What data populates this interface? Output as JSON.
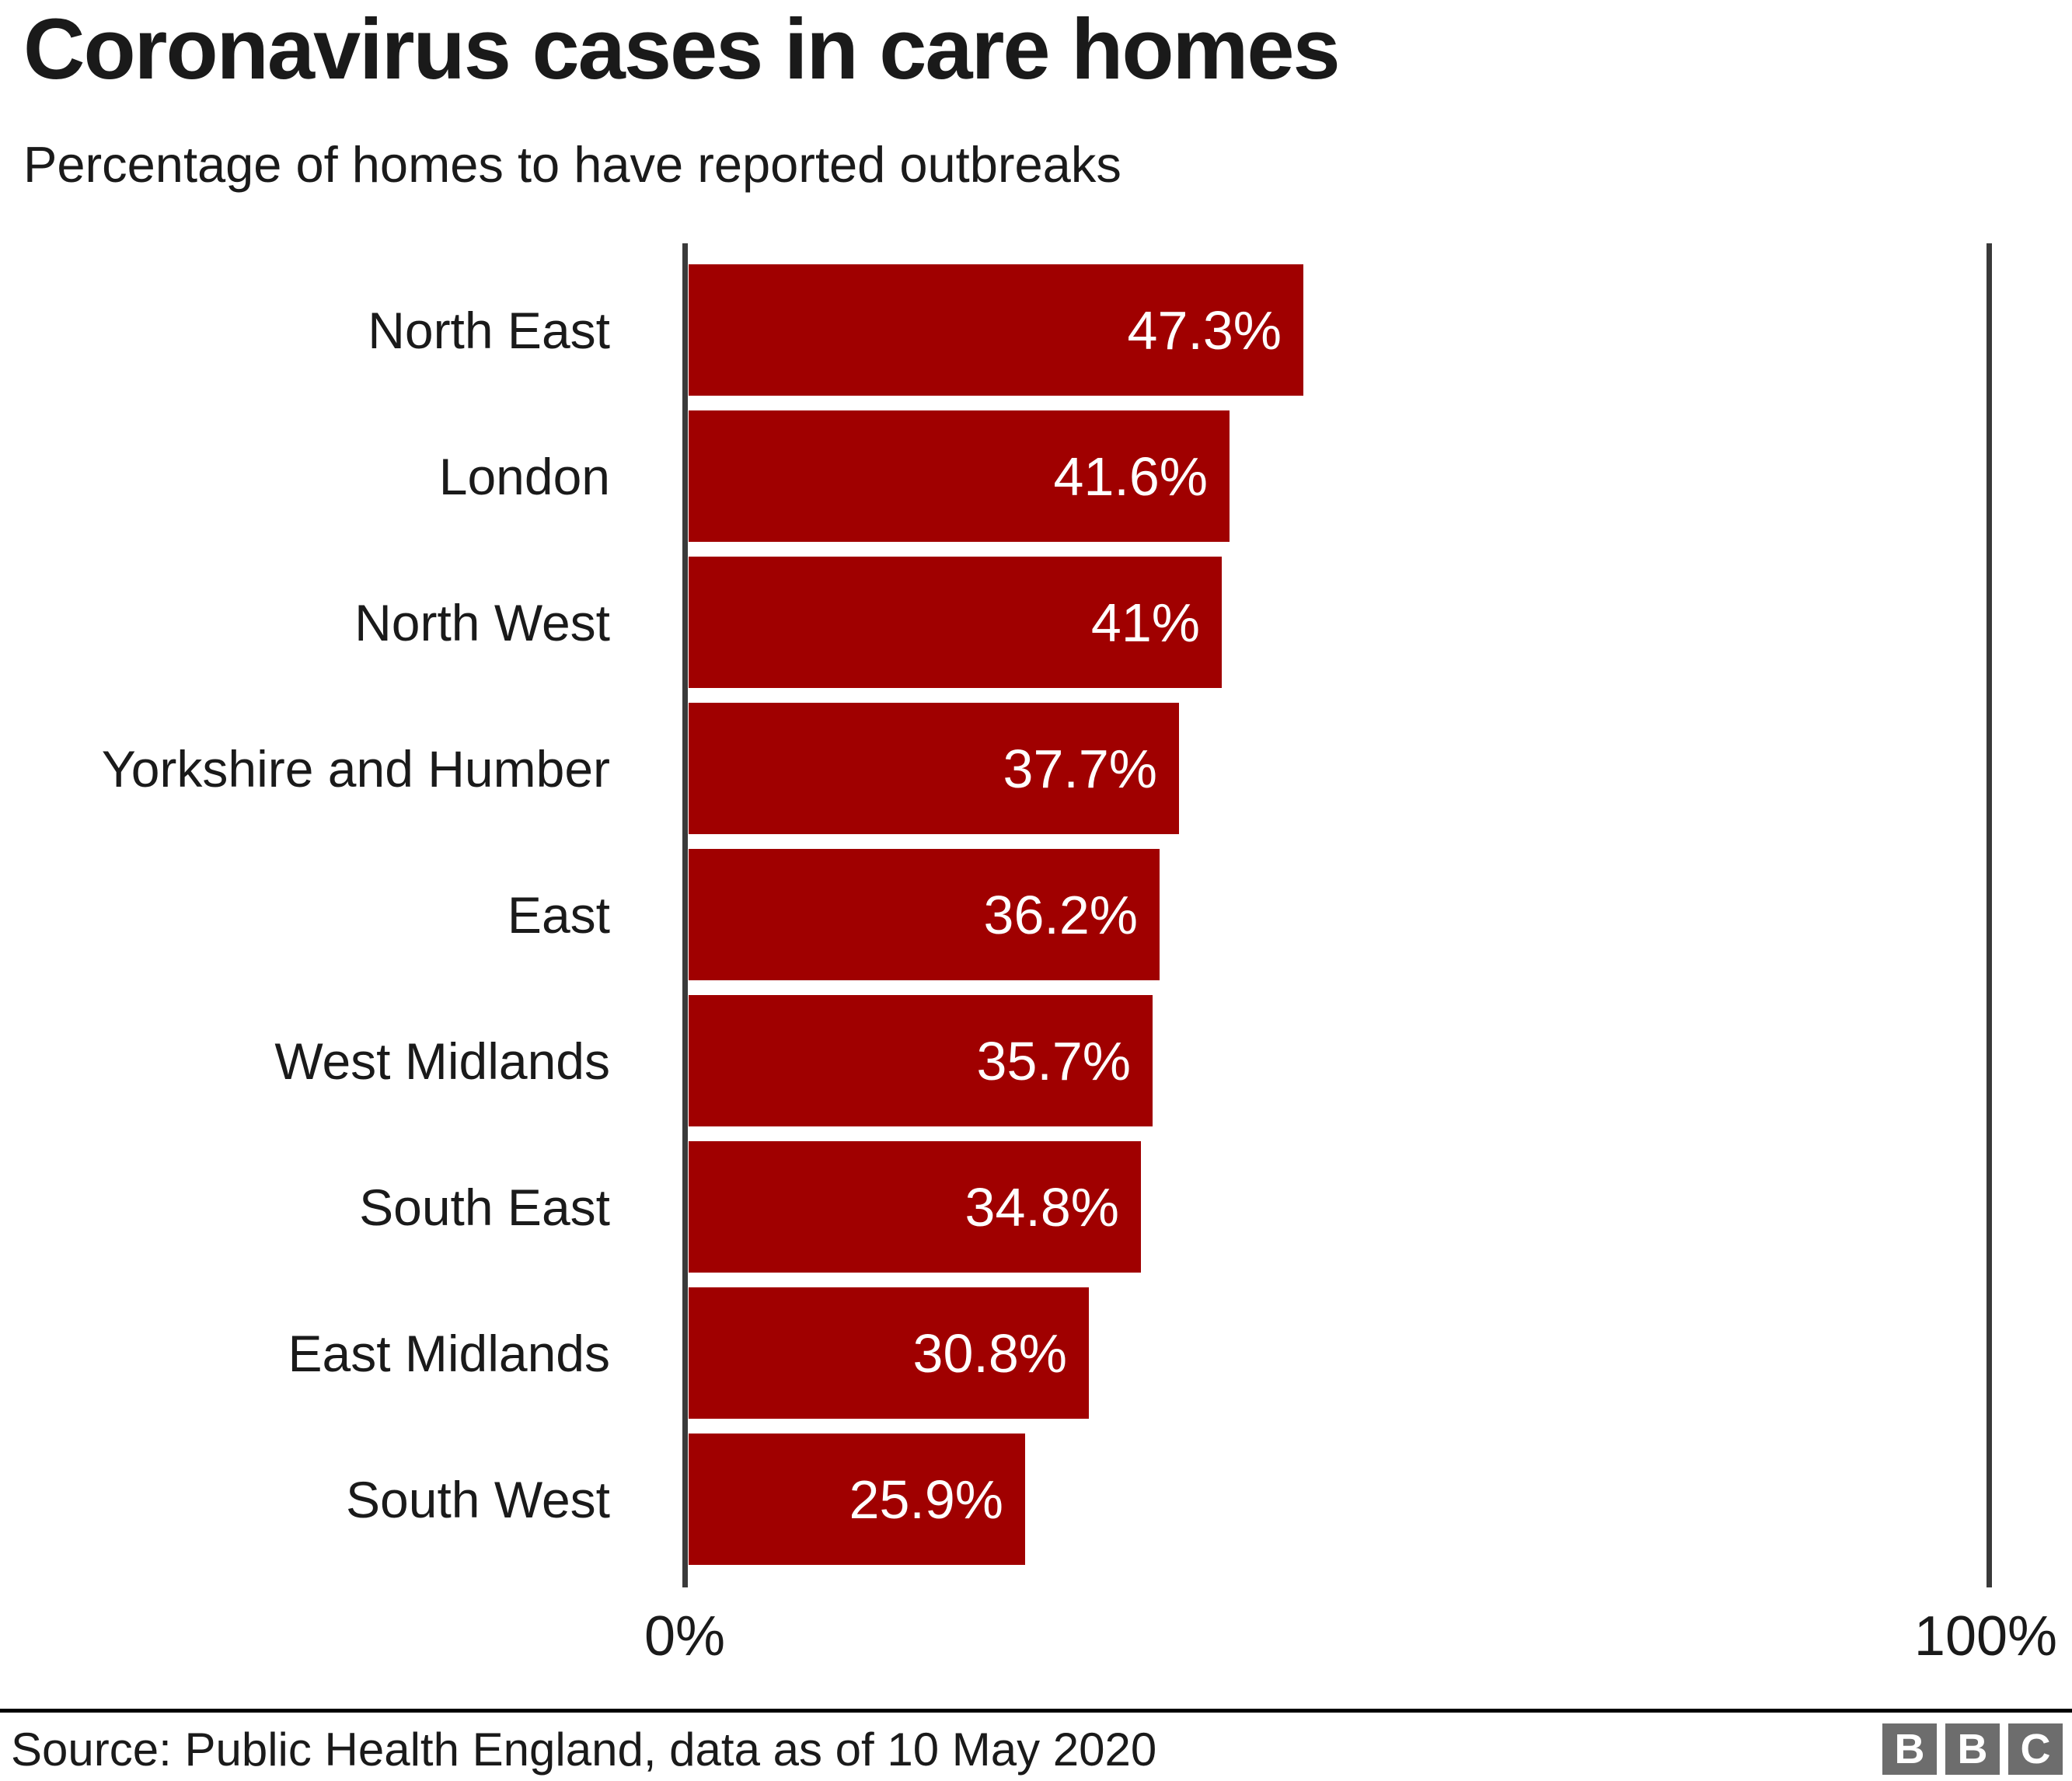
{
  "header": {
    "title": "Coronavirus cases in care homes",
    "subtitle": "Percentage of homes to have reported outbreaks"
  },
  "footer": {
    "source": "Source: Public Health England, data as of 10 May 2020",
    "logo_letters": [
      "B",
      "B",
      "C"
    ]
  },
  "axis": {
    "min_label": "0%",
    "max_label": "100%"
  },
  "colors": {
    "bar": "#a00000",
    "axis": "#3a3a3a",
    "text": "#1a1a1a",
    "value_text": "#ffffff",
    "logo_bg": "#6d6d6d",
    "rule": "#000000"
  },
  "chart_data": {
    "type": "bar",
    "orientation": "horizontal",
    "title": "Coronavirus cases in care homes",
    "subtitle": "Percentage of homes to have reported outbreaks",
    "categories": [
      "North East",
      "London",
      "North West",
      "Yorkshire and Humber",
      "East",
      "West Midlands",
      "South East",
      "East Midlands",
      "South West"
    ],
    "values": [
      47.3,
      41.6,
      41,
      37.7,
      36.2,
      35.7,
      34.8,
      30.8,
      25.9
    ],
    "value_labels": [
      "47.3%",
      "41.6%",
      "41%",
      "37.7%",
      "36.2%",
      "35.7%",
      "34.8%",
      "30.8%",
      "25.9%"
    ],
    "xlabel": "",
    "ylabel": "",
    "xlim": [
      0,
      100
    ],
    "x_tick_labels": [
      "0%",
      "100%"
    ],
    "grid": false,
    "legend": false
  }
}
